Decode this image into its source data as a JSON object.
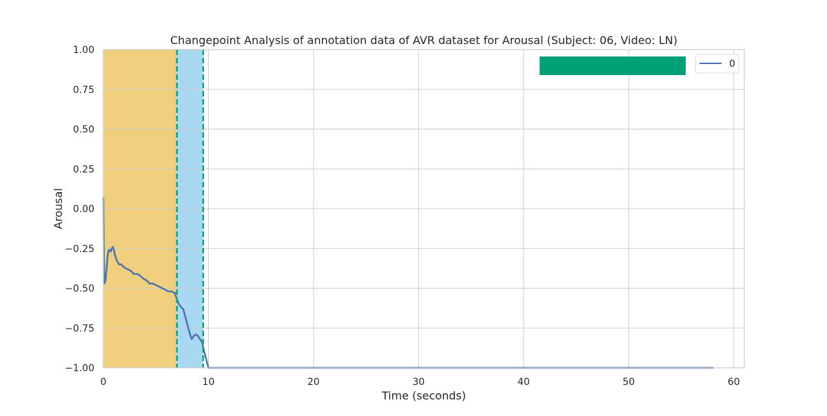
{
  "chart_data": {
    "type": "line",
    "title": "Changepoint Analysis of annotation data of AVR dataset for Arousal (Subject: 06, Video: LN)",
    "xlabel": "Time (seconds)",
    "ylabel": "Arousal",
    "xlim": [
      0,
      61
    ],
    "ylim": [
      -1.0,
      1.0
    ],
    "x_ticks": [
      0,
      10,
      20,
      30,
      40,
      50,
      60
    ],
    "x_tick_labels": [
      "0",
      "10",
      "20",
      "30",
      "40",
      "50",
      "60"
    ],
    "y_ticks": [
      -1.0,
      -0.75,
      -0.5,
      -0.25,
      0.0,
      0.25,
      0.5,
      0.75,
      1.0
    ],
    "y_tick_labels": [
      "−1.00",
      "−0.75",
      "−0.50",
      "−0.25",
      "0.00",
      "0.25",
      "0.50",
      "0.75",
      "1.00"
    ],
    "grid": true,
    "legend_placement": "top-right",
    "series": [
      {
        "name": "0",
        "color": "#4c72b0",
        "x": [
          0.0,
          0.05,
          0.1,
          0.2,
          0.3,
          0.4,
          0.5,
          0.6,
          0.7,
          0.8,
          0.9,
          1.0,
          1.1,
          1.3,
          1.5,
          1.7,
          2.0,
          2.3,
          2.6,
          2.9,
          3.2,
          3.5,
          3.8,
          4.1,
          4.4,
          4.7,
          5.0,
          5.3,
          5.6,
          5.9,
          6.2,
          6.5,
          6.8,
          7.0,
          7.2,
          7.4,
          7.6,
          7.8,
          8.0,
          8.2,
          8.4,
          8.6,
          8.8,
          9.0,
          9.2,
          9.4,
          9.6,
          9.8,
          10.0,
          10.2,
          15.0,
          20.0,
          30.0,
          40.0,
          50.0,
          58.0
        ],
        "y": [
          0.07,
          -0.3,
          -0.47,
          -0.45,
          -0.38,
          -0.3,
          -0.26,
          -0.26,
          -0.27,
          -0.25,
          -0.24,
          -0.26,
          -0.29,
          -0.33,
          -0.35,
          -0.35,
          -0.37,
          -0.38,
          -0.39,
          -0.41,
          -0.41,
          -0.42,
          -0.44,
          -0.45,
          -0.47,
          -0.47,
          -0.48,
          -0.49,
          -0.5,
          -0.51,
          -0.52,
          -0.52,
          -0.53,
          -0.57,
          -0.6,
          -0.62,
          -0.63,
          -0.68,
          -0.73,
          -0.78,
          -0.82,
          -0.8,
          -0.79,
          -0.8,
          -0.82,
          -0.84,
          -0.9,
          -0.95,
          -1.0,
          -1.0,
          -1.0,
          -1.0,
          -1.0,
          -1.0,
          -1.0,
          -1.0
        ]
      }
    ],
    "regions": [
      {
        "x_start": 0.0,
        "x_end": 7.0,
        "color": "#f0cf7e"
      },
      {
        "x_start": 7.0,
        "x_end": 9.5,
        "color": "#a9d8f2"
      }
    ],
    "changepoints": [
      7.0,
      9.5
    ],
    "changepoint_color": "#14a07a",
    "box_legend_color": "#00a076"
  }
}
